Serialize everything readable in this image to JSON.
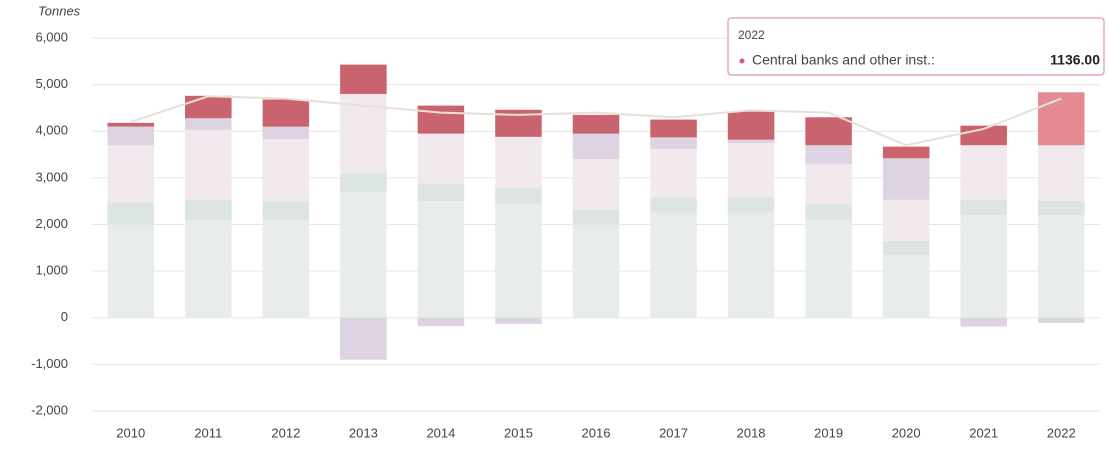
{
  "chart_data": {
    "type": "stacked_bar",
    "y_axis_label": "Tonnes",
    "categories": [
      "2010",
      "2011",
      "2012",
      "2013",
      "2014",
      "2015",
      "2016",
      "2017",
      "2018",
      "2019",
      "2020",
      "2021",
      "2022"
    ],
    "series": [
      {
        "color": "#e8edea",
        "values": [
          2000,
          2100,
          2100,
          2700,
          2500,
          2450,
          2000,
          2250,
          2250,
          2100,
          1350,
          2200,
          2200
        ]
      },
      {
        "color": "#dce5df",
        "values": [
          460,
          430,
          400,
          400,
          380,
          330,
          320,
          330,
          330,
          330,
          300,
          330,
          310
        ]
      },
      {
        "color": "#f2e9ef",
        "values": [
          1240,
          1500,
          1330,
          1700,
          1070,
          1100,
          1080,
          1040,
          1170,
          870,
          880,
          1170,
          1190
        ]
      },
      {
        "color": "#ddd3e1",
        "values": [
          400,
          250,
          270,
          -900,
          -180,
          -130,
          550,
          250,
          70,
          400,
          890,
          -190,
          -110
        ]
      },
      {
        "color": "#c9636e",
        "hover_color": "#e38a93",
        "values": [
          80,
          480,
          580,
          630,
          600,
          580,
          400,
          380,
          600,
          600,
          250,
          420,
          1136
        ]
      },
      {
        "type": "line",
        "color": "#eadfd6",
        "values": [
          4200,
          4750,
          4700,
          4550,
          4400,
          4350,
          4400,
          4300,
          4450,
          4400,
          3700,
          4050,
          4700
        ]
      }
    ],
    "ylim": [
      -2000,
      6000
    ],
    "yticks": [
      {
        "value": -2000,
        "label": "-2,000"
      },
      {
        "value": -1000,
        "label": "-1,000"
      },
      0,
      {
        "value": 1000,
        "label": "1,000"
      },
      {
        "value": 2000,
        "label": "2,000"
      },
      {
        "value": 3000,
        "label": "3,000"
      },
      {
        "value": 4000,
        "label": "4,000"
      },
      {
        "value": 5000,
        "label": "5,000"
      },
      {
        "value": 6000,
        "label": "6,000"
      }
    ],
    "grid": true,
    "tooltip": {
      "title": "2022",
      "label": "Central banks and other inst.:",
      "value_label": "1136.00"
    }
  }
}
